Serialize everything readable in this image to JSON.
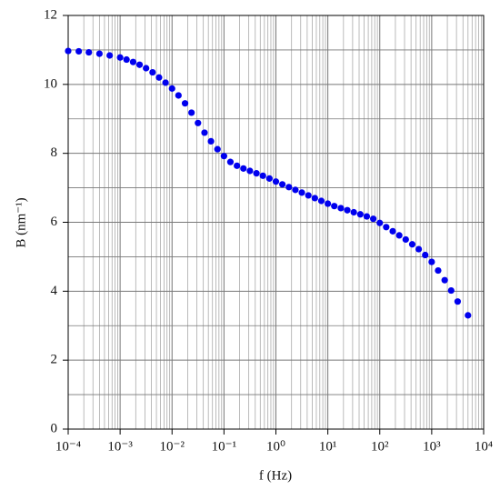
{
  "chart_data": {
    "type": "scatter",
    "x_label": "f (Hz)",
    "y_label": "B (nm⁻¹)",
    "xscale": "log",
    "grid": true,
    "minor_grid": true,
    "xlim": [
      0.0001,
      10000
    ],
    "ylim": [
      0,
      12
    ],
    "xticks": [
      {
        "value": 0.0001,
        "label": "10⁻⁴"
      },
      {
        "value": 0.001,
        "label": "10⁻³"
      },
      {
        "value": 0.01,
        "label": "10⁻²"
      },
      {
        "value": 0.1,
        "label": "10⁻¹"
      },
      {
        "value": 1,
        "label": "10⁰"
      },
      {
        "value": 10,
        "label": "10¹"
      },
      {
        "value": 100,
        "label": "10²"
      },
      {
        "value": 1000,
        "label": "10³"
      },
      {
        "value": 10000,
        "label": "10⁴"
      }
    ],
    "yticks": [
      0,
      2,
      4,
      6,
      8,
      10,
      12
    ],
    "series": [
      {
        "color": "#0000ee",
        "x": [
          0.0001,
          0.00016,
          0.00025,
          0.0004,
          0.00063,
          0.001,
          0.00133,
          0.00178,
          0.00237,
          0.00316,
          0.00422,
          0.00562,
          0.0075,
          0.01,
          0.0133,
          0.0178,
          0.0237,
          0.0316,
          0.0422,
          0.0562,
          0.075,
          0.1,
          0.133,
          0.178,
          0.237,
          0.316,
          0.422,
          0.562,
          0.75,
          1,
          1.33,
          1.78,
          2.37,
          3.16,
          4.22,
          5.62,
          7.5,
          10,
          13.3,
          17.8,
          23.7,
          31.6,
          42.2,
          56.2,
          75,
          100,
          133,
          178,
          237,
          316,
          422,
          562,
          750,
          1000,
          1330,
          1780,
          2370,
          3160,
          5000
        ],
        "values": [
          10.97,
          10.96,
          10.93,
          10.89,
          10.84,
          10.78,
          10.72,
          10.65,
          10.57,
          10.47,
          10.35,
          10.2,
          10.05,
          9.88,
          9.68,
          9.45,
          9.18,
          8.88,
          8.6,
          8.35,
          8.12,
          7.92,
          7.75,
          7.64,
          7.56,
          7.49,
          7.42,
          7.35,
          7.27,
          7.18,
          7.1,
          7.02,
          6.94,
          6.86,
          6.78,
          6.7,
          6.62,
          6.54,
          6.47,
          6.41,
          6.35,
          6.29,
          6.23,
          6.17,
          6.1,
          5.98,
          5.86,
          5.74,
          5.62,
          5.5,
          5.36,
          5.22,
          5.05,
          4.85,
          4.6,
          4.32,
          4.02,
          3.7,
          3.3
        ]
      }
    ]
  }
}
